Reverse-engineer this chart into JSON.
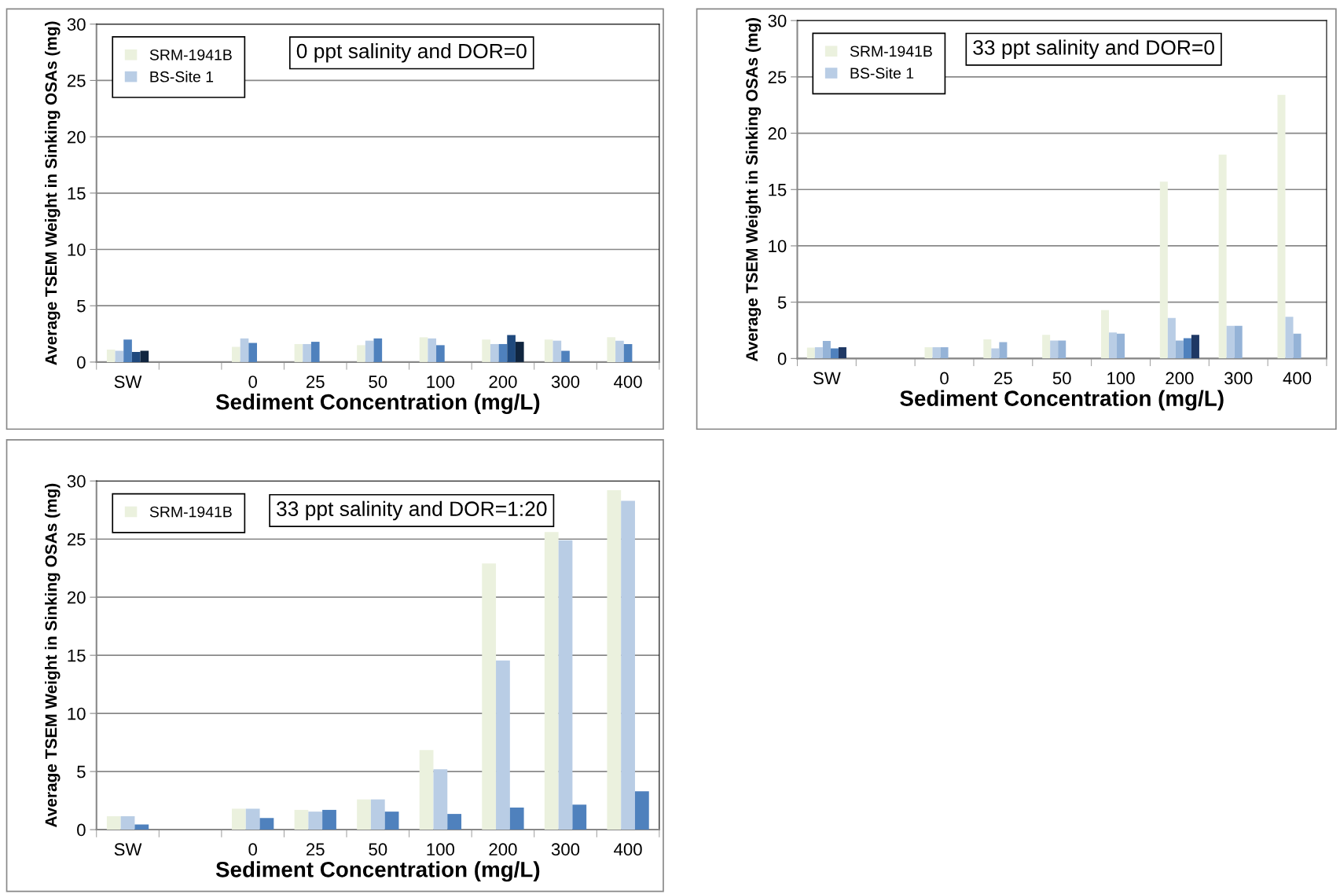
{
  "chart_data": [
    {
      "type": "bar",
      "title": "0 ppt salinity and DOR=0",
      "xlabel": "Sediment Concentration (mg/L)",
      "ylabel": "Average TSEM Weight in Sinking OSAs (mg)",
      "categories": [
        "SW",
        null,
        "0",
        "25",
        "50",
        "100",
        "200",
        "300",
        "400"
      ],
      "ylim": [
        0,
        30
      ],
      "yticks": [
        0,
        5,
        10,
        15,
        20,
        25,
        30
      ],
      "grid": "y",
      "legend": "top left",
      "series": [
        {
          "name": "SRM-1941B",
          "color": "#ebf1de",
          "values": [
            1.1,
            null,
            1.35,
            1.6,
            1.5,
            2.2,
            2.0,
            2.0,
            2.2
          ]
        },
        {
          "name": "BS-Site 1",
          "color": "#b9cde5",
          "values": [
            1.0,
            null,
            2.1,
            1.6,
            1.9,
            2.1,
            1.6,
            1.9,
            1.9
          ]
        },
        {
          "color": "#4f81bd",
          "values": [
            2.0,
            null,
            1.7,
            1.8,
            2.1,
            1.5,
            1.6,
            1.0,
            1.6
          ]
        },
        {
          "color": "#1f497d",
          "values": [
            0.9,
            null,
            null,
            null,
            null,
            null,
            2.4,
            null,
            null
          ]
        },
        {
          "color": "#10253f",
          "values": [
            1.0,
            null,
            null,
            null,
            null,
            null,
            1.8,
            null,
            null
          ]
        }
      ]
    },
    {
      "type": "bar",
      "title": "33 ppt salinity and DOR=0",
      "xlabel": "Sediment Concentration (mg/L)",
      "ylabel": "Average TSEM Weight in Sinking OSAs (mg)",
      "categories": [
        "SW",
        null,
        "0",
        "25",
        "50",
        "100",
        "200",
        "300",
        "400"
      ],
      "ylim": [
        0,
        30
      ],
      "yticks": [
        0,
        5,
        10,
        15,
        20,
        25,
        30
      ],
      "grid": "y",
      "legend": "top left",
      "series": [
        {
          "name": "SRM-1941B",
          "color": "#ebf1de",
          "values": [
            0.97,
            null,
            1.0,
            1.7,
            2.1,
            4.3,
            15.7,
            18.1,
            23.4
          ]
        },
        {
          "name": "BS-Site 1",
          "color": "#b9cde5",
          "values": [
            1.0,
            null,
            1.0,
            0.9,
            1.6,
            2.3,
            3.6,
            2.9,
            3.7
          ]
        },
        {
          "color": "#95b3d7",
          "values": [
            1.55,
            null,
            1.0,
            1.45,
            1.6,
            2.2,
            1.6,
            2.9,
            2.2
          ]
        },
        {
          "color": "#4f81bd",
          "values": [
            0.9,
            null,
            null,
            null,
            null,
            null,
            1.8,
            null,
            null
          ]
        },
        {
          "color": "#1f3864",
          "values": [
            1.0,
            null,
            null,
            null,
            null,
            null,
            2.1,
            null,
            null
          ]
        }
      ]
    },
    {
      "type": "bar",
      "title": "33 ppt salinity and DOR=1:20",
      "xlabel": "Sediment Concentration (mg/L)",
      "ylabel": "Average TSEM Weight in Sinking OSAs (mg)",
      "categories": [
        "SW",
        null,
        "0",
        "25",
        "50",
        "100",
        "200",
        "300",
        "400"
      ],
      "ylim": [
        0,
        30
      ],
      "yticks": [
        0,
        5,
        10,
        15,
        20,
        25,
        30
      ],
      "grid": "y",
      "legend": "top left",
      "series": [
        {
          "name": "SRM-1941B",
          "color": "#ebf1de",
          "values": [
            1.15,
            null,
            1.8,
            1.7,
            2.6,
            6.85,
            22.9,
            25.6,
            29.2
          ]
        },
        {
          "color": "#b9cde5",
          "values": [
            1.15,
            null,
            1.8,
            1.55,
            2.6,
            5.2,
            14.55,
            24.9,
            28.3
          ]
        },
        {
          "color": "#4f81bd",
          "values": [
            0.45,
            null,
            1.0,
            1.7,
            1.55,
            1.35,
            1.9,
            2.15,
            3.3
          ]
        }
      ]
    }
  ]
}
